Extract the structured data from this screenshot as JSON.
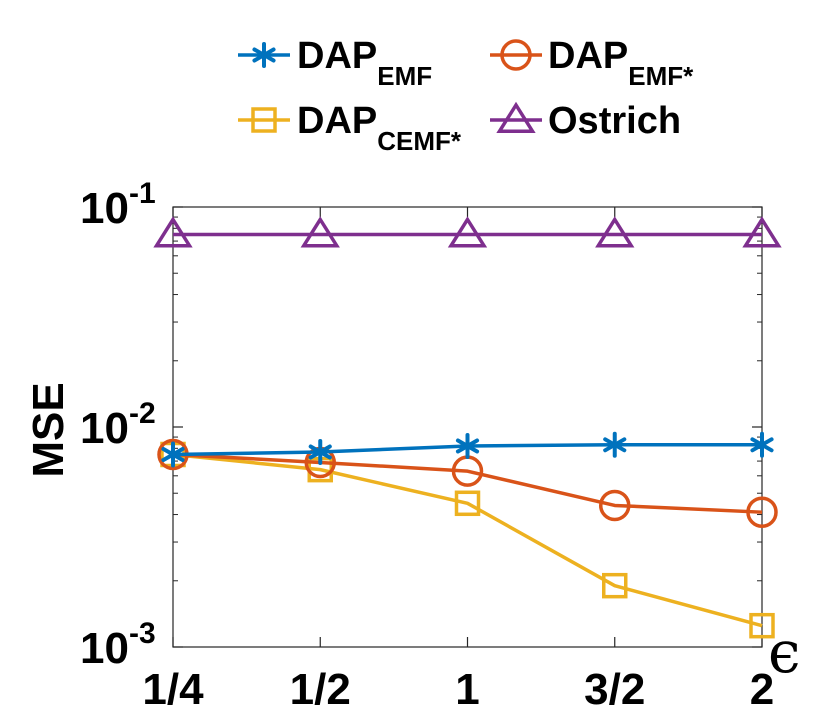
{
  "chart_data": {
    "type": "line",
    "title": "",
    "xlabel": "ϵ",
    "ylabel": "MSE",
    "yscale": "log",
    "ylim": [
      0.001,
      0.1
    ],
    "categories": [
      "1/4",
      "1/2",
      "1",
      "3/2",
      "2"
    ],
    "y_ticks": [
      {
        "base": "10",
        "exp": "-3",
        "value": 0.001
      },
      {
        "base": "10",
        "exp": "-2",
        "value": 0.01
      },
      {
        "base": "10",
        "exp": "-1",
        "value": 0.1
      }
    ],
    "legend_position": "top",
    "series": [
      {
        "name": "DAP",
        "sub": "EMF",
        "marker": "asterisk",
        "color": "#0072BD",
        "values": [
          0.0075,
          0.0077,
          0.0082,
          0.0083,
          0.0083
        ]
      },
      {
        "name": "DAP",
        "sub": "EMF*",
        "marker": "circle",
        "color": "#D95319",
        "values": [
          0.0075,
          0.0069,
          0.0063,
          0.0044,
          0.0041
        ]
      },
      {
        "name": "DAP",
        "sub": "CEMF*",
        "marker": "square",
        "color": "#EDB120",
        "values": [
          0.0075,
          0.0064,
          0.0045,
          0.0019,
          0.00125
        ]
      },
      {
        "name": "Ostrich",
        "sub": "",
        "marker": "triangle",
        "color": "#7E2F8E",
        "values": [
          0.075,
          0.075,
          0.075,
          0.075,
          0.075
        ]
      }
    ]
  }
}
